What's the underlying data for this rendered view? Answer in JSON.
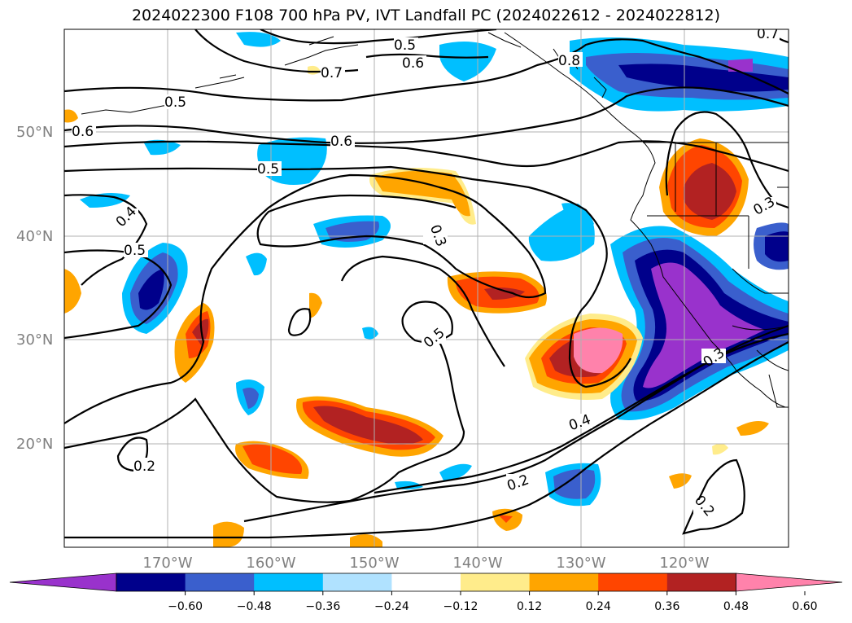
{
  "title": "2024022300 F108 700 hPa PV, IVT Landfall PC (2024022612 - 2024022812)",
  "map": {
    "lat_labels": [
      "50°N",
      "40°N",
      "30°N",
      "20°N"
    ],
    "lon_labels": [
      "170°W",
      "160°W",
      "150°W",
      "140°W",
      "130°W",
      "120°W"
    ],
    "contour_labels": [
      "0.5",
      "0.6",
      "0.7",
      "0.8",
      "0.5",
      "0.6",
      "0.6",
      "0.5",
      "0.4",
      "0.5",
      "0.3",
      "0.5",
      "0.3",
      "0.3",
      "0.4",
      "0.2",
      "0.2",
      "0.2",
      "0.7"
    ]
  },
  "colorbar": {
    "ticks": [
      "−0.60",
      "−0.48",
      "−0.36",
      "−0.24",
      "−0.12",
      "0.12",
      "0.24",
      "0.36",
      "0.48",
      "0.60"
    ],
    "colors": [
      "#9932cc",
      "#00008b",
      "#3a5fcd",
      "#00bfff",
      "#b0e2ff",
      "#ffffff",
      "#ffec8b",
      "#ffa500",
      "#ff4500",
      "#b22222",
      "#ff82ab"
    ]
  }
}
